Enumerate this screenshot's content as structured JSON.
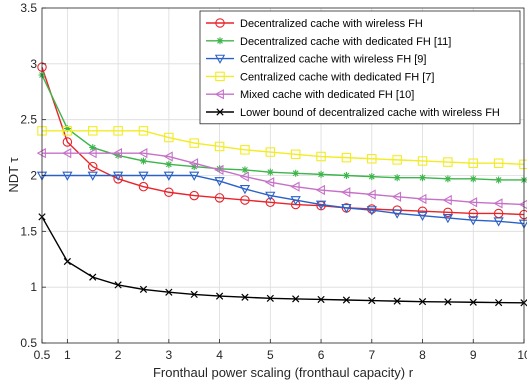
{
  "chart_data": {
    "type": "line",
    "xlabel": "Fronthaul power scaling (fronthaul capacity) r",
    "ylabel": "NDT τ",
    "xlim": [
      0.5,
      10
    ],
    "ylim": [
      0.5,
      3.5
    ],
    "xticks": [
      "0.5",
      "1",
      "2",
      "3",
      "4",
      "5",
      "6",
      "7",
      "8",
      "9",
      "10"
    ],
    "xtick_values": [
      0.5,
      1,
      2,
      3,
      4,
      5,
      6,
      7,
      8,
      9,
      10
    ],
    "yticks": [
      "0.5",
      "1",
      "1.5",
      "2",
      "2.5",
      "3",
      "3.5"
    ],
    "ytick_values": [
      0.5,
      1,
      1.5,
      2,
      2.5,
      3,
      3.5
    ],
    "grid": true,
    "legend_position": "top-right",
    "x": [
      0.5,
      1,
      1.5,
      2,
      2.5,
      3,
      3.5,
      4,
      4.5,
      5,
      5.5,
      6,
      6.5,
      7,
      7.5,
      8,
      8.5,
      9,
      9.5,
      10
    ],
    "series": [
      {
        "name": "Decentralized cache with wireless FH",
        "color": "#e8242b",
        "marker": "circle",
        "values": [
          2.97,
          2.3,
          2.08,
          1.97,
          1.9,
          1.85,
          1.82,
          1.8,
          1.78,
          1.76,
          1.74,
          1.73,
          1.71,
          1.7,
          1.69,
          1.68,
          1.67,
          1.66,
          1.66,
          1.65
        ]
      },
      {
        "name": "Decentralized cache with dedicated FH [11]",
        "color": "#3cb54a",
        "marker": "asterisk",
        "values": [
          2.9,
          2.42,
          2.25,
          2.18,
          2.13,
          2.1,
          2.08,
          2.06,
          2.05,
          2.03,
          2.02,
          2.01,
          2.0,
          1.99,
          1.98,
          1.98,
          1.97,
          1.97,
          1.96,
          1.96
        ]
      },
      {
        "name": "Centralized cache with wireless FH [9]",
        "color": "#2a61c8",
        "marker": "triangle-down",
        "values": [
          2.0,
          2.0,
          2.0,
          2.0,
          2.0,
          2.0,
          2.0,
          1.95,
          1.88,
          1.82,
          1.78,
          1.74,
          1.71,
          1.69,
          1.66,
          1.64,
          1.62,
          1.6,
          1.59,
          1.57
        ]
      },
      {
        "name": "Centralized cache with dedicated FH [7]",
        "color": "#f2ec24",
        "marker": "square",
        "values": [
          2.4,
          2.4,
          2.4,
          2.4,
          2.4,
          2.34,
          2.29,
          2.26,
          2.23,
          2.21,
          2.19,
          2.17,
          2.16,
          2.15,
          2.14,
          2.13,
          2.12,
          2.11,
          2.11,
          2.1
        ]
      },
      {
        "name": "Mixed cache with dedicated FH [10]",
        "color": "#c670c8",
        "marker": "triangle-left",
        "values": [
          2.2,
          2.2,
          2.2,
          2.2,
          2.2,
          2.17,
          2.11,
          2.05,
          1.99,
          1.94,
          1.9,
          1.87,
          1.85,
          1.83,
          1.81,
          1.79,
          1.78,
          1.76,
          1.75,
          1.74
        ]
      },
      {
        "name": "Lower bound of decentralized cache with wireless FH",
        "color": "#000000",
        "marker": "x",
        "values": [
          1.63,
          1.23,
          1.09,
          1.02,
          0.98,
          0.955,
          0.935,
          0.92,
          0.91,
          0.9,
          0.895,
          0.89,
          0.885,
          0.88,
          0.875,
          0.87,
          0.868,
          0.865,
          0.862,
          0.86
        ]
      }
    ]
  }
}
